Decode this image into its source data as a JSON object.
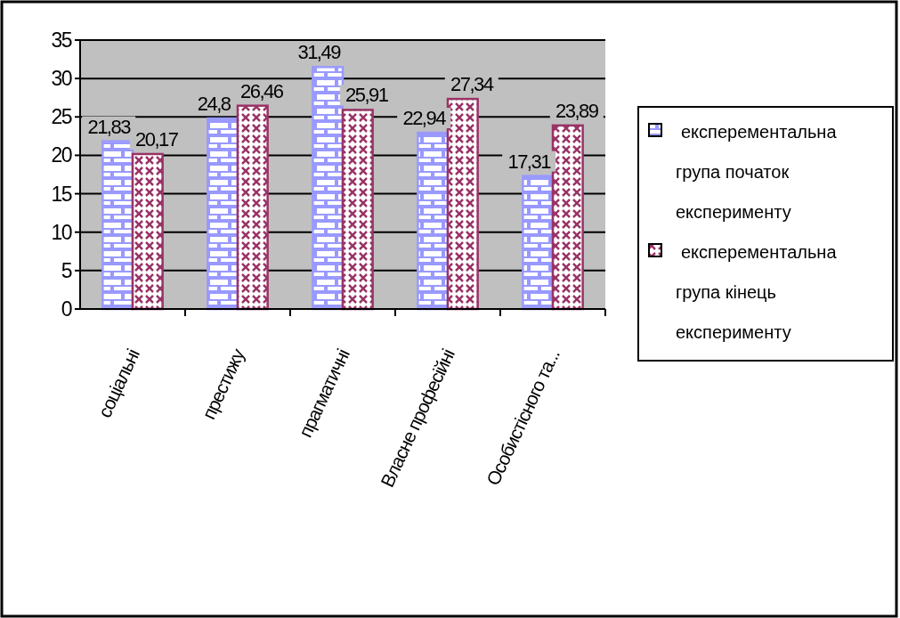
{
  "chart_data": {
    "type": "bar",
    "categories": [
      "соціальні",
      "престижу",
      "прагматичні",
      "Власне професійні",
      "Особистісного та..."
    ],
    "series": [
      {
        "name": "експерементальна група початок експерименту",
        "color": "#9999ff",
        "values": [
          21.83,
          24.8,
          31.49,
          22.94,
          17.31
        ],
        "value_labels": [
          "21,83",
          "24,8",
          "31,49",
          "22,94",
          "17,31"
        ]
      },
      {
        "name": "експерементальна група кінець експерименту",
        "color": "#993366",
        "values": [
          20.17,
          26.46,
          25.91,
          27.34,
          23.89
        ],
        "value_labels": [
          "20,17",
          "26,46",
          "25,91",
          "27,34",
          "23,89"
        ]
      }
    ],
    "ylim": [
      0,
      35
    ],
    "yticks": [
      0,
      5,
      10,
      15,
      20,
      25,
      30,
      35
    ],
    "grid": "y",
    "legend": "right"
  }
}
